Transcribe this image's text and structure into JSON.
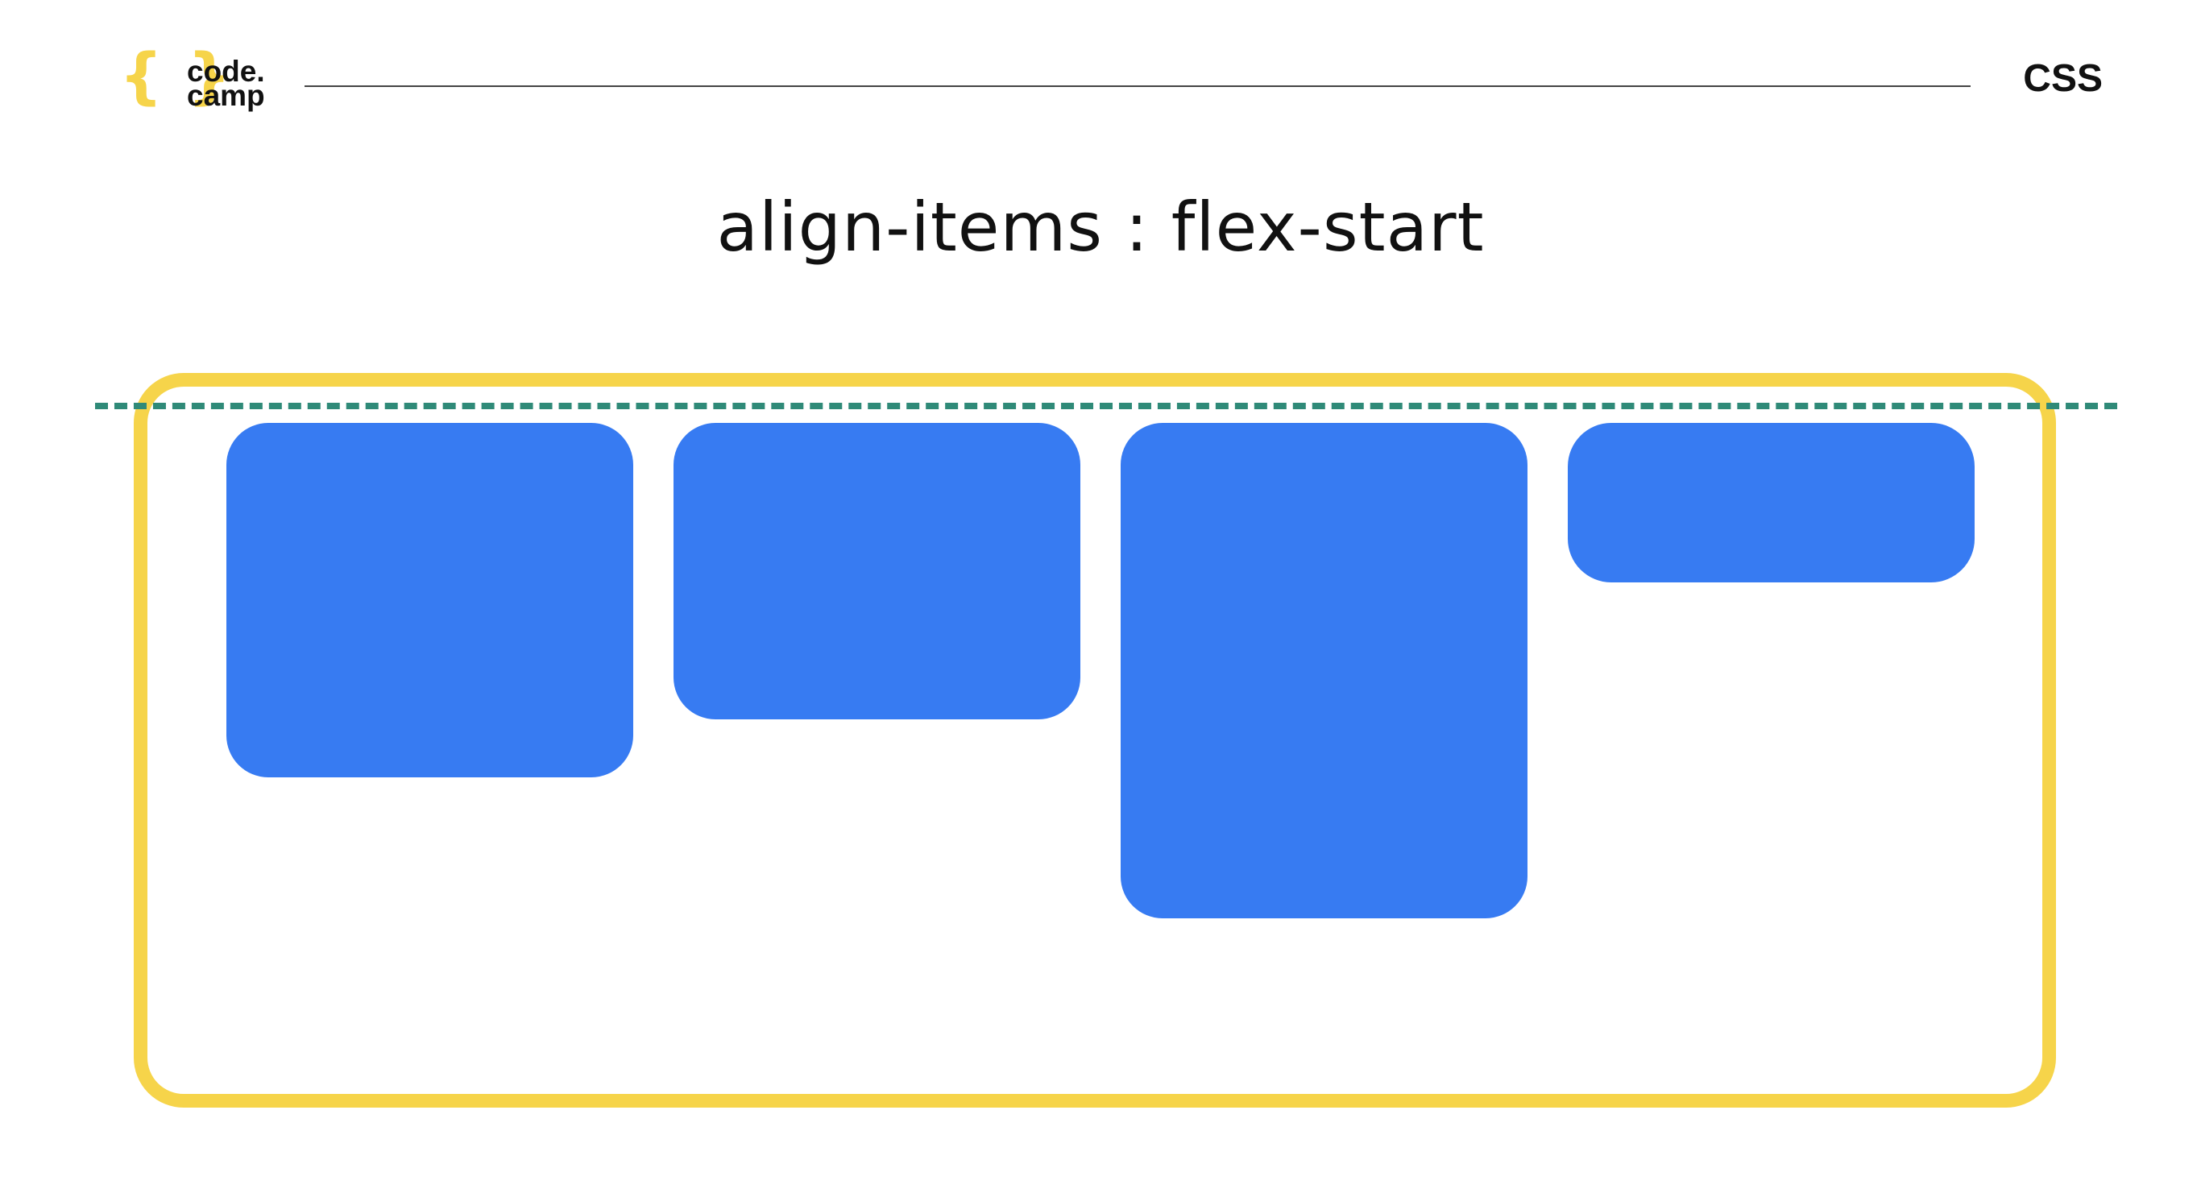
{
  "header": {
    "logo": {
      "braces": "{ }",
      "word_line1": "code.",
      "word_line2": "camp",
      "brace_color": "#f6d44a"
    },
    "topic": "CSS"
  },
  "slide": {
    "title": "align-items : flex-start"
  },
  "diagram": {
    "container_border_color": "#f6d44a",
    "baseline_color": "#2f8a78",
    "baseline_style": "dashed",
    "item_color": "#377bf2",
    "alignment": "flex-start",
    "item_count": 4
  }
}
